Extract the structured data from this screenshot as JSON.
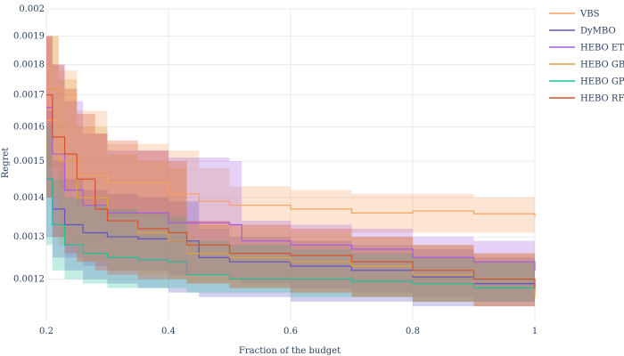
{
  "chart_data": {
    "type": "line",
    "title": "",
    "xlabel": "Fraction of the budget",
    "ylabel": "Regret",
    "xlim": [
      0.2,
      1.0
    ],
    "ylim": [
      0.00111,
      0.002
    ],
    "xticks": [
      0.2,
      0.4,
      0.6,
      0.8,
      1.0
    ],
    "xtick_labels": [
      "0.2",
      "0.4",
      "0.6",
      "0.8",
      "1"
    ],
    "yticks": [
      0.0012,
      0.0013,
      0.0014,
      0.0015,
      0.0016,
      0.0017,
      0.0018,
      0.0019,
      0.002
    ],
    "ytick_labels": [
      "0.0012",
      "0.0013",
      "0.0014",
      "0.0015",
      "0.0016",
      "0.0017",
      "0.0018",
      "0.0019",
      "0.002"
    ],
    "grid": true,
    "legend_position": "right",
    "series": [
      {
        "name": "VBS",
        "color": "#f5a25d",
        "x": [
          0.2,
          0.22,
          0.25,
          0.3,
          0.4,
          0.45,
          0.5,
          0.6,
          0.7,
          0.8,
          0.9,
          1.0
        ],
        "y": [
          0.00162,
          0.00152,
          0.00146,
          0.00144,
          0.00141,
          0.00139,
          0.00138,
          0.00137,
          0.00136,
          0.001365,
          0.001358,
          0.00135
        ],
        "upper": [
          0.0019,
          0.00178,
          0.00165,
          0.00155,
          0.00153,
          0.00148,
          0.00143,
          0.00142,
          0.00141,
          0.00141,
          0.0014,
          0.0014
        ],
        "lower": [
          0.00148,
          0.00142,
          0.00138,
          0.00135,
          0.00133,
          0.00132,
          0.00132,
          0.00131,
          0.00131,
          0.00131,
          0.00131,
          0.00131
        ]
      },
      {
        "name": "DyMBO",
        "color": "#5b55c4",
        "x": [
          0.2,
          0.21,
          0.23,
          0.26,
          0.3,
          0.35,
          0.4,
          0.45,
          0.5,
          0.6,
          0.7,
          0.8,
          0.9,
          1.0
        ],
        "y": [
          0.00145,
          0.00137,
          0.00133,
          0.00131,
          0.0013,
          0.001295,
          0.00129,
          0.00125,
          0.00124,
          0.00123,
          0.00122,
          0.001205,
          0.00119,
          0.00117
        ],
        "upper": [
          0.00165,
          0.0015,
          0.00145,
          0.00142,
          0.00141,
          0.0014,
          0.00139,
          0.00132,
          0.0013,
          0.00129,
          0.00128,
          0.00127,
          0.00125,
          0.00123
        ],
        "lower": [
          0.0013,
          0.00125,
          0.00122,
          0.0012,
          0.00119,
          0.00118,
          0.00117,
          0.00116,
          0.00116,
          0.00115,
          0.00115,
          0.00114,
          0.00114,
          0.00113
        ]
      },
      {
        "name": "HEBO ET",
        "color": "#a35de0",
        "x": [
          0.2,
          0.21,
          0.23,
          0.26,
          0.3,
          0.4,
          0.5,
          0.52,
          0.6,
          0.7,
          0.8,
          0.9,
          1.0
        ],
        "y": [
          0.00166,
          0.00152,
          0.00142,
          0.00138,
          0.00136,
          0.001335,
          0.00133,
          0.00129,
          0.00128,
          0.00127,
          0.00125,
          0.00124,
          0.00122
        ],
        "upper": [
          0.0019,
          0.0018,
          0.00168,
          0.00158,
          0.00153,
          0.00151,
          0.0015,
          0.00134,
          0.00133,
          0.00132,
          0.0013,
          0.00129,
          0.00128
        ],
        "lower": [
          0.0014,
          0.0013,
          0.00125,
          0.00123,
          0.00122,
          0.00121,
          0.0012,
          0.00119,
          0.00118,
          0.00117,
          0.00116,
          0.00115,
          0.00114
        ]
      },
      {
        "name": "HEBO GB",
        "color": "#e0a040",
        "x": [
          0.2,
          0.22,
          0.25,
          0.3,
          0.35,
          0.4,
          0.43,
          0.5,
          0.6,
          0.7,
          0.8,
          0.9,
          1.0
        ],
        "y": [
          0.00172,
          0.0015,
          0.0014,
          0.00134,
          0.00131,
          0.00129,
          0.00126,
          0.00125,
          0.00124,
          0.00123,
          0.00121,
          0.00118,
          0.00116
        ],
        "upper": [
          0.0019,
          0.00175,
          0.0016,
          0.00152,
          0.0015,
          0.00148,
          0.00133,
          0.00132,
          0.00131,
          0.0013,
          0.00128,
          0.00126,
          0.00124
        ],
        "lower": [
          0.0014,
          0.00128,
          0.00124,
          0.00122,
          0.00121,
          0.0012,
          0.00119,
          0.00118,
          0.00117,
          0.00116,
          0.00115,
          0.00114,
          0.00113
        ]
      },
      {
        "name": "HEBO GP",
        "color": "#1fbf9a",
        "x": [
          0.2,
          0.21,
          0.23,
          0.26,
          0.3,
          0.35,
          0.4,
          0.43,
          0.5,
          0.6,
          0.7,
          0.8,
          0.9,
          1.0
        ],
        "y": [
          0.00145,
          0.00133,
          0.00128,
          0.00126,
          0.00125,
          0.001245,
          0.00124,
          0.00121,
          0.0012,
          0.0012,
          0.001195,
          0.00119,
          0.00118,
          0.00118
        ],
        "upper": [
          0.0016,
          0.00145,
          0.0014,
          0.00138,
          0.00137,
          0.00136,
          0.00135,
          0.00129,
          0.00128,
          0.00127,
          0.00126,
          0.00125,
          0.00124,
          0.00123
        ],
        "lower": [
          0.00128,
          0.00122,
          0.0012,
          0.00119,
          0.00118,
          0.00118,
          0.00118,
          0.00117,
          0.00117,
          0.00116,
          0.00116,
          0.00115,
          0.00115,
          0.00114
        ]
      },
      {
        "name": "HEBO RF",
        "color": "#d8502a",
        "x": [
          0.2,
          0.21,
          0.23,
          0.25,
          0.28,
          0.3,
          0.35,
          0.4,
          0.43,
          0.5,
          0.6,
          0.7,
          0.8,
          0.9,
          1.0
        ],
        "y": [
          0.0017,
          0.00157,
          0.00152,
          0.00145,
          0.00137,
          0.00134,
          0.00132,
          0.00131,
          0.00128,
          0.00126,
          0.001255,
          0.00124,
          0.00122,
          0.0012,
          0.00118
        ],
        "upper": [
          0.0019,
          0.0018,
          0.00172,
          0.00164,
          0.00158,
          0.00156,
          0.00153,
          0.0015,
          0.00134,
          0.00133,
          0.00132,
          0.0013,
          0.00128,
          0.00126,
          0.00124
        ],
        "lower": [
          0.0014,
          0.0013,
          0.00126,
          0.00124,
          0.00122,
          0.00121,
          0.0012,
          0.0012,
          0.00119,
          0.00118,
          0.00117,
          0.00116,
          0.00115,
          0.00114,
          0.00113
        ]
      }
    ]
  }
}
